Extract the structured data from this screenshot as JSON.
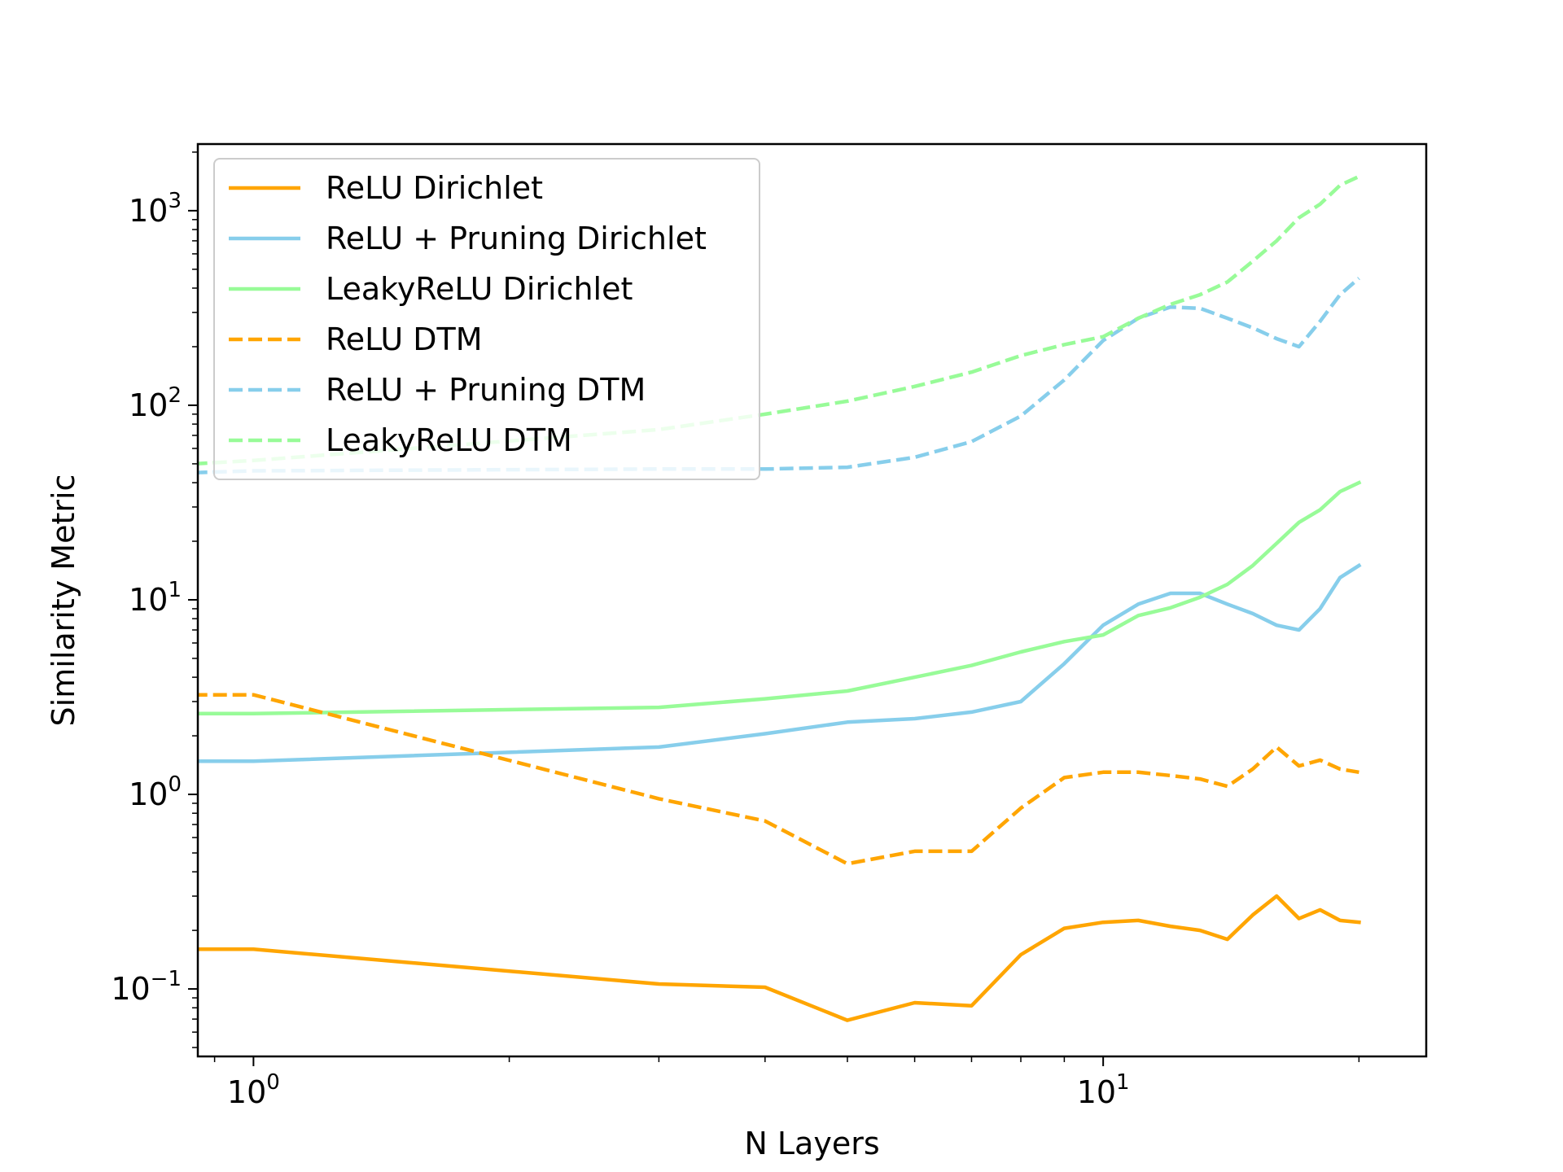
{
  "chart_data": {
    "type": "line",
    "xlabel": "N Layers",
    "ylabel": "Similarity Metric",
    "xscale": "log",
    "yscale": "log",
    "xlim": [
      0.86,
      24
    ],
    "ylim": [
      0.045,
      2200
    ],
    "x_ticks": [
      {
        "value": 1,
        "base": "10",
        "exp": "0"
      },
      {
        "value": 10,
        "base": "10",
        "exp": "1"
      }
    ],
    "y_ticks": [
      {
        "value": 0.1,
        "base": "10",
        "exp": "−1"
      },
      {
        "value": 1,
        "base": "10",
        "exp": "0"
      },
      {
        "value": 10,
        "base": "10",
        "exp": "1"
      },
      {
        "value": 100,
        "base": "10",
        "exp": "2"
      },
      {
        "value": 1000,
        "base": "10",
        "exp": "3"
      }
    ],
    "grid": false,
    "legend_position": "upper-left",
    "series": [
      {
        "name": "ReLU Dirichlet",
        "color": "#ffa500",
        "dash": "solid",
        "x": [
          0.85,
          1,
          3,
          4,
          5,
          6,
          7,
          8,
          9,
          10,
          11,
          12,
          13,
          14,
          15,
          16,
          17,
          18,
          19,
          20
        ],
        "y": [
          0.16,
          0.16,
          0.106,
          0.102,
          0.069,
          0.085,
          0.082,
          0.15,
          0.205,
          0.22,
          0.225,
          0.21,
          0.2,
          0.18,
          0.24,
          0.3,
          0.23,
          0.255,
          0.225,
          0.22
        ]
      },
      {
        "name": "ReLU + Pruning Dirichlet",
        "color": "#87ceeb",
        "dash": "solid",
        "x": [
          0.85,
          1,
          3,
          4,
          5,
          6,
          7,
          8,
          9,
          10,
          11,
          12,
          13,
          14,
          15,
          16,
          17,
          18,
          19,
          20
        ],
        "y": [
          1.48,
          1.48,
          1.75,
          2.05,
          2.35,
          2.45,
          2.65,
          3.0,
          4.7,
          7.4,
          9.5,
          10.8,
          10.8,
          9.5,
          8.5,
          7.4,
          7.0,
          9.0,
          13.0,
          15.0
        ]
      },
      {
        "name": "LeakyReLU Dirichlet",
        "color": "#98fb98",
        "dash": "solid",
        "x": [
          0.85,
          1,
          3,
          4,
          5,
          6,
          7,
          8,
          9,
          10,
          11,
          12,
          13,
          14,
          15,
          16,
          17,
          18,
          19,
          20
        ],
        "y": [
          2.6,
          2.6,
          2.8,
          3.1,
          3.4,
          4.0,
          4.6,
          5.4,
          6.1,
          6.6,
          8.3,
          9.1,
          10.3,
          12.0,
          15.0,
          19.5,
          25.0,
          29.0,
          36.0,
          40.0
        ]
      },
      {
        "name": "ReLU DTM",
        "color": "#ffa500",
        "dash": "dashed",
        "x": [
          0.85,
          1,
          3,
          4,
          5,
          6,
          7,
          8,
          9,
          10,
          11,
          12,
          13,
          14,
          15,
          16,
          17,
          18,
          19,
          20
        ],
        "y": [
          3.25,
          3.25,
          0.95,
          0.73,
          0.44,
          0.51,
          0.51,
          0.85,
          1.22,
          1.3,
          1.3,
          1.25,
          1.2,
          1.1,
          1.35,
          1.75,
          1.4,
          1.5,
          1.35,
          1.3
        ]
      },
      {
        "name": "ReLU + Pruning DTM",
        "color": "#87ceeb",
        "dash": "dashed",
        "x": [
          0.85,
          1,
          3,
          4,
          5,
          6,
          7,
          8,
          9,
          10,
          11,
          12,
          13,
          14,
          15,
          16,
          17,
          18,
          19,
          20
        ],
        "y": [
          45,
          46,
          47,
          47,
          48,
          54,
          65,
          88,
          135,
          215,
          280,
          320,
          315,
          280,
          250,
          220,
          200,
          270,
          370,
          450
        ]
      },
      {
        "name": "LeakyReLU DTM",
        "color": "#98fb98",
        "dash": "dashed",
        "x": [
          0.85,
          1,
          3,
          4,
          5,
          6,
          7,
          8,
          9,
          10,
          11,
          12,
          13,
          14,
          15,
          16,
          17,
          18,
          19,
          20
        ],
        "y": [
          50,
          52,
          75,
          90,
          105,
          125,
          148,
          180,
          205,
          225,
          280,
          330,
          370,
          430,
          550,
          700,
          920,
          1080,
          1350,
          1500
        ]
      }
    ]
  }
}
